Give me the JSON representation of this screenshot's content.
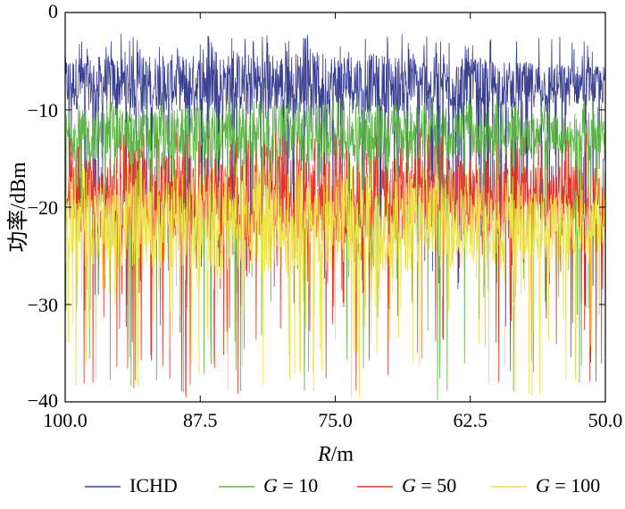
{
  "chart_data": {
    "type": "line",
    "xlabel_var": "R",
    "xlabel_unit": "/m",
    "ylabel": "功率/dBm",
    "xlim": [
      100.0,
      50.0
    ],
    "ylim": [
      -40,
      0
    ],
    "x_ticks": [
      100.0,
      87.5,
      75.0,
      62.5,
      50.0
    ],
    "x_tick_labels": [
      "100.0",
      "87.5",
      "75.0",
      "62.5",
      "50.0"
    ],
    "y_ticks": [
      0,
      -10,
      -20,
      -30,
      -40
    ],
    "y_tick_labels": [
      "0",
      "−10",
      "−20",
      "−30",
      "−40"
    ],
    "grid": false,
    "legend_position": "bottom",
    "series": [
      {
        "name": "ICHD",
        "legend_prefix": "",
        "legend_value": "",
        "color": "#3b4191",
        "band_top": [
          -4.5,
          -4.0,
          -5.5
        ],
        "band_bottom": [
          -10.0,
          -10.5,
          -9.5
        ],
        "spike_max": -2.2,
        "dip_min": -33.0
      },
      {
        "name": "G = 10",
        "legend_prefix": "G",
        "legend_value": " = 10",
        "color": "#5cb346",
        "band_top": [
          -10.0,
          -9.5,
          -11.0
        ],
        "band_bottom": [
          -15.0,
          -15.5,
          -14.5
        ],
        "spike_max": -9.0,
        "dip_min": -40.0
      },
      {
        "name": "G = 50",
        "legend_prefix": "G",
        "legend_value": " = 50",
        "color": "#e8322b",
        "band_top": [
          -15.0,
          -14.0,
          -16.0
        ],
        "band_bottom": [
          -23.0,
          -24.0,
          -22.0
        ],
        "spike_max": -12.3,
        "dip_min": -40.0
      },
      {
        "name": "G = 100",
        "legend_prefix": "G",
        "legend_value": " = 100",
        "color": "#ede34a",
        "band_top": [
          -18.0,
          -16.5,
          -19.0
        ],
        "band_bottom": [
          -26.0,
          -27.0,
          -25.0
        ],
        "spike_max": -15.5,
        "dip_min": -40.0
      }
    ]
  }
}
